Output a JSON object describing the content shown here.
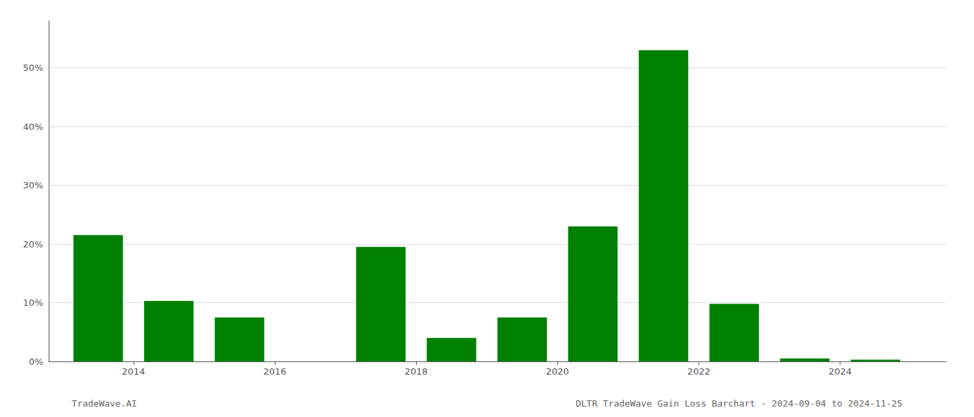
{
  "chart_data": {
    "type": "bar",
    "title": "DLTR TradeWave Gain Loss Barchart - 2024-09-04 to 2024-11-25",
    "annotations": [
      "TradeWave.AI"
    ],
    "x": [
      2013,
      2014,
      2015,
      2016,
      2017,
      2018,
      2019,
      2020,
      2021,
      2022,
      2023,
      2024
    ],
    "values": [
      0.215,
      0.103,
      0.075,
      0.0,
      0.195,
      0.04,
      0.075,
      0.23,
      0.53,
      0.098,
      0.005,
      0.003
    ],
    "color": "#008000",
    "xlim": [
      2012.3,
      2025.0
    ],
    "xticks": [
      {
        "value": 2013.5,
        "label": "2014"
      },
      {
        "value": 2015.5,
        "label": "2016"
      },
      {
        "value": 2017.5,
        "label": "2018"
      },
      {
        "value": 2019.5,
        "label": "2020"
      },
      {
        "value": 2021.5,
        "label": "2022"
      },
      {
        "value": 2023.5,
        "label": "2024"
      }
    ],
    "ylim": [
      0,
      0.58
    ],
    "yticks": [
      {
        "value": 0.0,
        "label": "0%"
      },
      {
        "value": 0.1,
        "label": "10%"
      },
      {
        "value": 0.2,
        "label": "20%"
      },
      {
        "value": 0.3,
        "label": "30%"
      },
      {
        "value": 0.4,
        "label": "40%"
      },
      {
        "value": 0.5,
        "label": "50%"
      }
    ],
    "grid": true
  }
}
